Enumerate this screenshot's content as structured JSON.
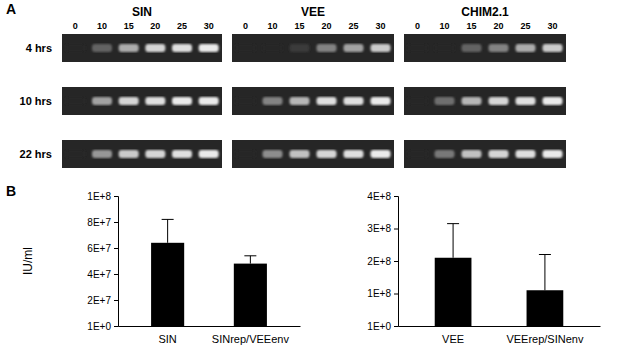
{
  "panel_labels": [
    "A",
    "B"
  ],
  "gel": {
    "groups": [
      {
        "name": "SIN",
        "lanes": [
          0,
          10,
          15,
          20,
          25,
          30
        ]
      },
      {
        "name": "VEE",
        "lanes": [
          0,
          10,
          15,
          20,
          25,
          30
        ]
      },
      {
        "name": "CHIM2.1",
        "lanes": [
          0,
          10,
          15,
          20,
          25,
          30
        ]
      }
    ],
    "rows": [
      {
        "label": "4 hrs",
        "intensities": [
          [
            0,
            0.3,
            0.65,
            0.85,
            0.9,
            0.95
          ],
          [
            0,
            0,
            0.1,
            0.45,
            0.6,
            0.8
          ],
          [
            0,
            0,
            0.3,
            0.45,
            0.65,
            0.8
          ]
        ]
      },
      {
        "label": "10 hrs",
        "intensities": [
          [
            0,
            0.6,
            0.85,
            0.9,
            0.95,
            0.95
          ],
          [
            0,
            0.45,
            0.7,
            0.9,
            0.9,
            0.95
          ],
          [
            0,
            0.35,
            0.7,
            0.85,
            0.9,
            0.95
          ]
        ]
      },
      {
        "label": "22 hrs",
        "intensities": [
          [
            0,
            0.55,
            0.8,
            0.85,
            0.9,
            0.95
          ],
          [
            0,
            0.5,
            0.75,
            0.85,
            0.9,
            0.95
          ],
          [
            0,
            0.4,
            0.75,
            0.85,
            0.9,
            0.95
          ]
        ]
      }
    ]
  },
  "chart_data": [
    {
      "type": "bar",
      "y_label": "IU/ml",
      "categories": [
        "SIN",
        "SINrep/VEEenv"
      ],
      "values": [
        64000000,
        48000000
      ],
      "errors": [
        18000000,
        6000000
      ],
      "color": "#000000",
      "ylim": [
        1,
        100000000
      ],
      "yticks": [
        {
          "value": 1,
          "label": "1E+0"
        },
        {
          "value": 20000000,
          "label": "2E+7"
        },
        {
          "value": 40000000,
          "label": "4E+7"
        },
        {
          "value": 60000000,
          "label": "6E+7"
        },
        {
          "value": 80000000,
          "label": "8E+7"
        },
        {
          "value": 100000000,
          "label": "1E+8"
        }
      ]
    },
    {
      "type": "bar",
      "categories": [
        "VEE",
        "VEErep/SINenv"
      ],
      "values": [
        210000000,
        110000000
      ],
      "errors": [
        105000000,
        110000000
      ],
      "color": "#000000",
      "ylim": [
        1,
        400000000
      ],
      "yticks": [
        {
          "value": 1,
          "label": "1E+0"
        },
        {
          "value": 100000000,
          "label": "1E+8"
        },
        {
          "value": 200000000,
          "label": "2E+8"
        },
        {
          "value": 300000000,
          "label": "3E+8"
        },
        {
          "value": 400000000,
          "label": "4E+8"
        }
      ]
    }
  ]
}
